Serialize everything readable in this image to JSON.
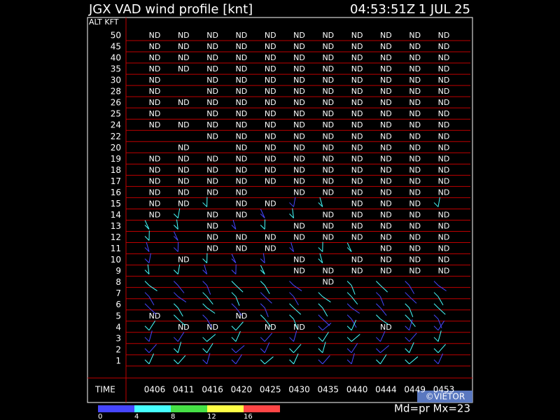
{
  "header": {
    "title": "JGX VAD wind profile [knt]",
    "time": "04:53:51Z",
    "date": "1 JUL 25"
  },
  "axis_label": "ALT KFT",
  "time_label": "TIME",
  "times": [
    "0406",
    "0411",
    "0416",
    "0420",
    "0425",
    "0430",
    "0435",
    "0440",
    "0444",
    "0449",
    "0453"
  ],
  "rows": [
    {
      "alt": "50",
      "cells": [
        "ND",
        "ND",
        "ND",
        "ND",
        "ND",
        "ND",
        "ND",
        "ND",
        "ND",
        "ND",
        "ND"
      ]
    },
    {
      "alt": "45",
      "cells": [
        "ND",
        "ND",
        "ND",
        "ND",
        "ND",
        "ND",
        "ND",
        "ND",
        "ND",
        "ND",
        "ND"
      ]
    },
    {
      "alt": "40",
      "cells": [
        "ND",
        "ND",
        "ND",
        "ND",
        "ND",
        "ND",
        "ND",
        "ND",
        "ND",
        "ND",
        "ND"
      ]
    },
    {
      "alt": "35",
      "cells": [
        "ND",
        "ND",
        "ND",
        "ND",
        "ND",
        "ND",
        "ND",
        "ND",
        "ND",
        "ND",
        "ND"
      ]
    },
    {
      "alt": "30",
      "cells": [
        "ND",
        null,
        "ND",
        "ND",
        "ND",
        "ND",
        "ND",
        "ND",
        "ND",
        "ND",
        "ND"
      ]
    },
    {
      "alt": "28",
      "cells": [
        "ND",
        null,
        "ND",
        "ND",
        "ND",
        "ND",
        "ND",
        "ND",
        "ND",
        "ND",
        "ND"
      ]
    },
    {
      "alt": "26",
      "cells": [
        "ND",
        "ND",
        "ND",
        "ND",
        "ND",
        "ND",
        "ND",
        "ND",
        "ND",
        "ND",
        "ND"
      ]
    },
    {
      "alt": "25",
      "cells": [
        "ND",
        null,
        "ND",
        "ND",
        "ND",
        "ND",
        "ND",
        "ND",
        "ND",
        "ND",
        "ND"
      ]
    },
    {
      "alt": "24",
      "cells": [
        "ND",
        "ND",
        "ND",
        "ND",
        "ND",
        "ND",
        "ND",
        "ND",
        "ND",
        "ND",
        "ND"
      ]
    },
    {
      "alt": "22",
      "cells": [
        null,
        null,
        "ND",
        "ND",
        "ND",
        "ND",
        "ND",
        "ND",
        "ND",
        "ND",
        "ND"
      ]
    },
    {
      "alt": "20",
      "cells": [
        null,
        "ND",
        null,
        "ND",
        "ND",
        "ND",
        "ND",
        "ND",
        "ND",
        "ND",
        "ND"
      ]
    },
    {
      "alt": "19",
      "cells": [
        "ND",
        "ND",
        "ND",
        "ND",
        "ND",
        "ND",
        "ND",
        "ND",
        "ND",
        "ND",
        "ND"
      ]
    },
    {
      "alt": "18",
      "cells": [
        "ND",
        "ND",
        "ND",
        "ND",
        "ND",
        "ND",
        "ND",
        "ND",
        "ND",
        "ND",
        "ND"
      ]
    },
    {
      "alt": "17",
      "cells": [
        "ND",
        "ND",
        "ND",
        "ND",
        "ND",
        "ND",
        "ND",
        "ND",
        "ND",
        "ND",
        "ND"
      ]
    },
    {
      "alt": "16",
      "cells": [
        "ND",
        "ND",
        "ND",
        "ND",
        null,
        "ND",
        "ND",
        "ND",
        "ND",
        "ND",
        "ND"
      ]
    },
    {
      "alt": "15",
      "cells": [
        "ND",
        "ND",
        null,
        "ND",
        "ND",
        null,
        null,
        "ND",
        "ND",
        "ND",
        null
      ]
    },
    {
      "alt": "14",
      "cells": [
        "ND",
        null,
        "ND",
        "ND",
        null,
        null,
        "ND",
        "ND",
        "ND",
        "ND",
        "ND"
      ]
    },
    {
      "alt": "13",
      "cells": [
        null,
        null,
        "ND",
        null,
        null,
        "ND",
        "ND",
        "ND",
        "ND",
        "ND",
        "ND"
      ]
    },
    {
      "alt": "12",
      "cells": [
        null,
        null,
        "ND",
        "ND",
        "ND",
        "ND",
        "ND",
        "ND",
        "ND",
        "ND",
        "ND"
      ]
    },
    {
      "alt": "11",
      "cells": [
        null,
        null,
        "ND",
        "ND",
        "ND",
        null,
        null,
        null,
        "ND",
        "ND",
        "ND"
      ]
    },
    {
      "alt": "10",
      "cells": [
        null,
        "ND",
        null,
        null,
        null,
        "ND",
        null,
        "ND",
        "ND",
        "ND",
        "ND"
      ]
    },
    {
      "alt": "9",
      "cells": [
        null,
        null,
        null,
        null,
        null,
        "ND",
        "ND",
        "ND",
        "ND",
        "ND",
        "ND"
      ]
    },
    {
      "alt": "8",
      "cells": [
        null,
        null,
        null,
        null,
        null,
        null,
        "ND",
        null,
        null,
        null,
        null
      ]
    },
    {
      "alt": "7",
      "cells": [
        null,
        null,
        null,
        null,
        null,
        null,
        null,
        null,
        null,
        null,
        null
      ]
    },
    {
      "alt": "6",
      "cells": [
        null,
        null,
        null,
        null,
        null,
        null,
        null,
        null,
        null,
        null,
        null
      ]
    },
    {
      "alt": "5",
      "cells": [
        "ND",
        null,
        null,
        "ND",
        null,
        null,
        null,
        null,
        null,
        null,
        null
      ]
    },
    {
      "alt": "4",
      "cells": [
        null,
        "ND",
        "ND",
        null,
        "ND",
        "ND",
        null,
        null,
        "ND",
        null,
        null
      ]
    },
    {
      "alt": "3",
      "cells": [
        null,
        null,
        null,
        null,
        null,
        null,
        null,
        null,
        null,
        null,
        null
      ]
    },
    {
      "alt": "2",
      "cells": [
        null,
        null,
        null,
        null,
        null,
        null,
        null,
        null,
        null,
        null,
        null
      ]
    },
    {
      "alt": "1",
      "cells": [
        null,
        null,
        null,
        null,
        null,
        null,
        null,
        null,
        null,
        null,
        null
      ]
    }
  ],
  "footer": {
    "mode": "Md=pr Mx=23",
    "credit": "©VIETOR"
  },
  "legend": [
    {
      "label": "0",
      "color": "#4646ff"
    },
    {
      "label": "4",
      "color": "#46ffff"
    },
    {
      "label": "8",
      "color": "#46e046"
    },
    {
      "label": "12",
      "color": "#ffff46"
    },
    {
      "label": "16",
      "color": "#ff4646"
    }
  ]
}
